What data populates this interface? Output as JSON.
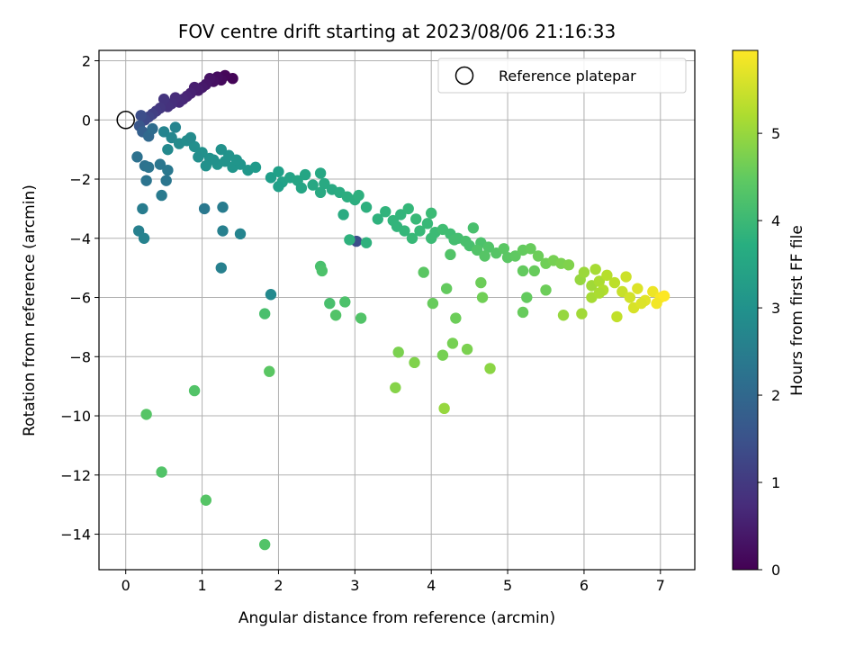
{
  "chart_data": {
    "type": "scatter",
    "title": "FOV centre drift starting at 2023/08/06 21:16:33",
    "xlabel": "Angular distance from reference (arcmin)",
    "ylabel": "Rotation from reference (arcmin)",
    "xlim": [
      -0.35,
      7.45
    ],
    "ylim": [
      -15.2,
      2.35
    ],
    "xticks": [
      0,
      1,
      2,
      3,
      4,
      5,
      6,
      7
    ],
    "yticks": [
      2,
      0,
      -2,
      -4,
      -6,
      -8,
      -10,
      -12,
      -14
    ],
    "xtick_labels": [
      "0",
      "1",
      "2",
      "3",
      "4",
      "5",
      "6",
      "7"
    ],
    "ytick_labels": [
      "2",
      "0",
      "−2",
      "−4",
      "−6",
      "−8",
      "−10",
      "−12",
      "−14"
    ],
    "grid": true,
    "legend": {
      "placement": "top-right",
      "entries": [
        "Reference platepar"
      ]
    },
    "reference_point": {
      "x": 0,
      "y": 0
    },
    "colorbar": {
      "label": "Hours from first FF file",
      "colormap": "viridis",
      "range": [
        0,
        5.95
      ],
      "ticks": [
        0,
        1,
        2,
        3,
        4,
        5
      ],
      "tick_labels": [
        "0",
        "1",
        "2",
        "3",
        "4",
        "5"
      ]
    },
    "points": [
      {
        "x": 1.4,
        "y": 1.4,
        "c": 0.05
      },
      {
        "x": 1.3,
        "y": 1.5,
        "c": 0.1
      },
      {
        "x": 1.25,
        "y": 1.35,
        "c": 0.15
      },
      {
        "x": 1.2,
        "y": 1.45,
        "c": 0.2
      },
      {
        "x": 1.15,
        "y": 1.3,
        "c": 0.25
      },
      {
        "x": 1.1,
        "y": 1.4,
        "c": 0.3
      },
      {
        "x": 1.05,
        "y": 1.2,
        "c": 0.35
      },
      {
        "x": 1.0,
        "y": 1.1,
        "c": 0.4
      },
      {
        "x": 0.95,
        "y": 1.0,
        "c": 0.45
      },
      {
        "x": 0.9,
        "y": 1.1,
        "c": 0.5
      },
      {
        "x": 0.85,
        "y": 0.9,
        "c": 0.55
      },
      {
        "x": 0.8,
        "y": 0.8,
        "c": 0.6
      },
      {
        "x": 0.75,
        "y": 0.7,
        "c": 0.65
      },
      {
        "x": 0.7,
        "y": 0.6,
        "c": 0.7
      },
      {
        "x": 0.65,
        "y": 0.75,
        "c": 0.75
      },
      {
        "x": 0.6,
        "y": 0.55,
        "c": 0.8
      },
      {
        "x": 0.55,
        "y": 0.45,
        "c": 0.85
      },
      {
        "x": 0.5,
        "y": 0.7,
        "c": 0.9
      },
      {
        "x": 0.45,
        "y": 0.4,
        "c": 0.95
      },
      {
        "x": 0.4,
        "y": 0.3,
        "c": 1.0
      },
      {
        "x": 0.35,
        "y": 0.2,
        "c": 1.1
      },
      {
        "x": 0.3,
        "y": 0.1,
        "c": 1.2
      },
      {
        "x": 0.25,
        "y": 0.0,
        "c": 1.3
      },
      {
        "x": 0.2,
        "y": 0.15,
        "c": 1.4
      },
      {
        "x": 0.18,
        "y": -0.2,
        "c": 1.6
      },
      {
        "x": 0.22,
        "y": -0.4,
        "c": 1.8
      },
      {
        "x": 0.3,
        "y": -0.55,
        "c": 2.0
      },
      {
        "x": 0.35,
        "y": -0.3,
        "c": 2.1
      },
      {
        "x": 0.15,
        "y": -1.25,
        "c": 2.2
      },
      {
        "x": 0.25,
        "y": -1.55,
        "c": 2.25
      },
      {
        "x": 0.3,
        "y": -1.6,
        "c": 2.3
      },
      {
        "x": 0.45,
        "y": -1.5,
        "c": 2.35
      },
      {
        "x": 0.55,
        "y": -1.7,
        "c": 2.4
      },
      {
        "x": 0.27,
        "y": -2.05,
        "c": 2.3
      },
      {
        "x": 0.53,
        "y": -2.05,
        "c": 2.35
      },
      {
        "x": 0.47,
        "y": -2.55,
        "c": 2.45
      },
      {
        "x": 0.22,
        "y": -3.0,
        "c": 2.5
      },
      {
        "x": 0.17,
        "y": -3.75,
        "c": 2.6
      },
      {
        "x": 0.24,
        "y": -4.0,
        "c": 2.65
      },
      {
        "x": 1.03,
        "y": -3.0,
        "c": 2.4
      },
      {
        "x": 1.27,
        "y": -2.95,
        "c": 2.5
      },
      {
        "x": 1.27,
        "y": -3.75,
        "c": 2.6
      },
      {
        "x": 1.5,
        "y": -3.85,
        "c": 2.7
      },
      {
        "x": 1.25,
        "y": -5.0,
        "c": 2.6
      },
      {
        "x": 1.9,
        "y": -5.9,
        "c": 2.8
      },
      {
        "x": 3.02,
        "y": -4.1,
        "c": 1.4
      },
      {
        "x": 0.5,
        "y": -0.4,
        "c": 2.7
      },
      {
        "x": 0.6,
        "y": -0.6,
        "c": 2.75
      },
      {
        "x": 0.55,
        "y": -1.0,
        "c": 2.8
      },
      {
        "x": 0.7,
        "y": -0.8,
        "c": 2.85
      },
      {
        "x": 0.8,
        "y": -0.7,
        "c": 2.9
      },
      {
        "x": 0.9,
        "y": -0.9,
        "c": 2.95
      },
      {
        "x": 1.0,
        "y": -1.1,
        "c": 3.0
      },
      {
        "x": 1.1,
        "y": -1.3,
        "c": 3.0
      },
      {
        "x": 1.2,
        "y": -1.5,
        "c": 3.05
      },
      {
        "x": 1.3,
        "y": -1.4,
        "c": 3.05
      },
      {
        "x": 1.4,
        "y": -1.6,
        "c": 3.1
      },
      {
        "x": 1.5,
        "y": -1.5,
        "c": 3.1
      },
      {
        "x": 1.6,
        "y": -1.7,
        "c": 3.15
      },
      {
        "x": 1.7,
        "y": -1.6,
        "c": 3.2
      },
      {
        "x": 0.95,
        "y": -1.25,
        "c": 2.95
      },
      {
        "x": 1.15,
        "y": -1.35,
        "c": 3.0
      },
      {
        "x": 1.35,
        "y": -1.2,
        "c": 3.05
      },
      {
        "x": 1.05,
        "y": -1.55,
        "c": 3.0
      },
      {
        "x": 0.65,
        "y": -0.25,
        "c": 2.7
      },
      {
        "x": 0.85,
        "y": -0.6,
        "c": 2.85
      },
      {
        "x": 1.25,
        "y": -1.0,
        "c": 3.0
      },
      {
        "x": 1.45,
        "y": -1.35,
        "c": 3.1
      },
      {
        "x": 1.9,
        "y": -1.95,
        "c": 3.3
      },
      {
        "x": 2.0,
        "y": -1.75,
        "c": 3.35
      },
      {
        "x": 2.05,
        "y": -2.1,
        "c": 3.4
      },
      {
        "x": 2.15,
        "y": -1.95,
        "c": 3.45
      },
      {
        "x": 2.25,
        "y": -2.05,
        "c": 3.5
      },
      {
        "x": 2.35,
        "y": -1.85,
        "c": 3.5
      },
      {
        "x": 2.45,
        "y": -2.2,
        "c": 3.55
      },
      {
        "x": 2.55,
        "y": -1.8,
        "c": 3.55
      },
      {
        "x": 2.6,
        "y": -2.15,
        "c": 3.6
      },
      {
        "x": 2.7,
        "y": -2.35,
        "c": 3.6
      },
      {
        "x": 2.8,
        "y": -2.45,
        "c": 3.65
      },
      {
        "x": 2.9,
        "y": -2.6,
        "c": 3.7
      },
      {
        "x": 3.0,
        "y": -2.7,
        "c": 3.7
      },
      {
        "x": 3.05,
        "y": -2.55,
        "c": 3.75
      },
      {
        "x": 2.0,
        "y": -2.25,
        "c": 3.35
      },
      {
        "x": 2.3,
        "y": -2.3,
        "c": 3.5
      },
      {
        "x": 2.55,
        "y": -2.45,
        "c": 3.6
      },
      {
        "x": 2.85,
        "y": -3.2,
        "c": 3.65
      },
      {
        "x": 3.15,
        "y": -2.95,
        "c": 3.75
      },
      {
        "x": 3.3,
        "y": -3.35,
        "c": 3.8
      },
      {
        "x": 3.4,
        "y": -3.1,
        "c": 3.85
      },
      {
        "x": 3.5,
        "y": -3.4,
        "c": 3.9
      },
      {
        "x": 3.6,
        "y": -3.2,
        "c": 3.9
      },
      {
        "x": 3.7,
        "y": -3.0,
        "c": 3.95
      },
      {
        "x": 3.8,
        "y": -3.35,
        "c": 4.0
      },
      {
        "x": 3.95,
        "y": -3.5,
        "c": 4.0
      },
      {
        "x": 4.0,
        "y": -3.15,
        "c": 4.05
      },
      {
        "x": 4.05,
        "y": -3.8,
        "c": 4.05
      },
      {
        "x": 4.15,
        "y": -3.7,
        "c": 4.1
      },
      {
        "x": 4.25,
        "y": -3.85,
        "c": 4.1
      },
      {
        "x": 4.35,
        "y": -4.0,
        "c": 4.15
      },
      {
        "x": 4.45,
        "y": -4.1,
        "c": 4.2
      },
      {
        "x": 4.55,
        "y": -3.65,
        "c": 4.2
      },
      {
        "x": 4.65,
        "y": -4.15,
        "c": 4.25
      },
      {
        "x": 4.75,
        "y": -4.3,
        "c": 4.3
      },
      {
        "x": 4.85,
        "y": -4.5,
        "c": 4.35
      },
      {
        "x": 3.85,
        "y": -3.75,
        "c": 4.0
      },
      {
        "x": 4.0,
        "y": -4.0,
        "c": 4.05
      },
      {
        "x": 4.3,
        "y": -4.05,
        "c": 4.15
      },
      {
        "x": 4.5,
        "y": -4.25,
        "c": 4.2
      },
      {
        "x": 3.55,
        "y": -3.6,
        "c": 3.9
      },
      {
        "x": 3.65,
        "y": -3.75,
        "c": 3.95
      },
      {
        "x": 3.75,
        "y": -4.0,
        "c": 4.0
      },
      {
        "x": 2.93,
        "y": -4.05,
        "c": 3.8
      },
      {
        "x": 3.15,
        "y": -4.15,
        "c": 3.8
      },
      {
        "x": 4.25,
        "y": -4.55,
        "c": 4.3
      },
      {
        "x": 4.6,
        "y": -4.4,
        "c": 4.3
      },
      {
        "x": 4.7,
        "y": -4.6,
        "c": 4.35
      },
      {
        "x": 4.95,
        "y": -4.35,
        "c": 4.4
      },
      {
        "x": 5.0,
        "y": -4.65,
        "c": 4.4
      },
      {
        "x": 5.1,
        "y": -4.6,
        "c": 4.45
      },
      {
        "x": 5.2,
        "y": -4.4,
        "c": 4.5
      },
      {
        "x": 5.3,
        "y": -4.35,
        "c": 4.55
      },
      {
        "x": 5.4,
        "y": -4.6,
        "c": 4.6
      },
      {
        "x": 5.5,
        "y": -4.85,
        "c": 4.65
      },
      {
        "x": 5.6,
        "y": -4.75,
        "c": 4.7
      },
      {
        "x": 5.7,
        "y": -4.85,
        "c": 4.75
      },
      {
        "x": 5.8,
        "y": -4.9,
        "c": 4.8
      },
      {
        "x": 5.2,
        "y": -5.1,
        "c": 4.5
      },
      {
        "x": 5.35,
        "y": -5.1,
        "c": 4.55
      },
      {
        "x": 5.5,
        "y": -5.75,
        "c": 4.6
      },
      {
        "x": 5.25,
        "y": -6.0,
        "c": 4.5
      },
      {
        "x": 5.2,
        "y": -6.5,
        "c": 4.55
      },
      {
        "x": 5.95,
        "y": -5.4,
        "c": 5.0
      },
      {
        "x": 6.0,
        "y": -5.15,
        "c": 5.05
      },
      {
        "x": 6.1,
        "y": -5.6,
        "c": 5.1
      },
      {
        "x": 6.15,
        "y": -5.05,
        "c": 5.15
      },
      {
        "x": 6.2,
        "y": -5.45,
        "c": 5.2
      },
      {
        "x": 6.25,
        "y": -5.75,
        "c": 5.25
      },
      {
        "x": 6.3,
        "y": -5.25,
        "c": 5.3
      },
      {
        "x": 6.4,
        "y": -5.5,
        "c": 5.35
      },
      {
        "x": 6.5,
        "y": -5.8,
        "c": 5.45
      },
      {
        "x": 6.55,
        "y": -5.3,
        "c": 5.5
      },
      {
        "x": 6.6,
        "y": -6.0,
        "c": 5.55
      },
      {
        "x": 6.7,
        "y": -5.7,
        "c": 5.65
      },
      {
        "x": 6.8,
        "y": -6.1,
        "c": 5.7
      },
      {
        "x": 6.9,
        "y": -5.8,
        "c": 5.8
      },
      {
        "x": 7.0,
        "y": -6.0,
        "c": 5.9
      },
      {
        "x": 7.05,
        "y": -5.95,
        "c": 5.95
      },
      {
        "x": 6.1,
        "y": -6.0,
        "c": 5.15
      },
      {
        "x": 6.2,
        "y": -5.85,
        "c": 5.2
      },
      {
        "x": 6.65,
        "y": -6.35,
        "c": 5.6
      },
      {
        "x": 6.75,
        "y": -6.2,
        "c": 5.65
      },
      {
        "x": 6.95,
        "y": -6.2,
        "c": 5.85
      },
      {
        "x": 6.43,
        "y": -6.65,
        "c": 5.4
      },
      {
        "x": 5.73,
        "y": -6.6,
        "c": 5.0
      },
      {
        "x": 5.97,
        "y": -6.55,
        "c": 5.1
      },
      {
        "x": 2.55,
        "y": -4.95,
        "c": 4.2
      },
      {
        "x": 2.57,
        "y": -5.1,
        "c": 4.25
      },
      {
        "x": 2.67,
        "y": -6.2,
        "c": 4.2
      },
      {
        "x": 2.87,
        "y": -6.15,
        "c": 4.25
      },
      {
        "x": 2.75,
        "y": -6.6,
        "c": 4.3
      },
      {
        "x": 3.08,
        "y": -6.7,
        "c": 4.3
      },
      {
        "x": 1.82,
        "y": -6.55,
        "c": 4.2
      },
      {
        "x": 3.9,
        "y": -5.15,
        "c": 4.4
      },
      {
        "x": 4.2,
        "y": -5.7,
        "c": 4.5
      },
      {
        "x": 4.02,
        "y": -6.2,
        "c": 4.55
      },
      {
        "x": 4.32,
        "y": -6.7,
        "c": 4.6
      },
      {
        "x": 4.65,
        "y": -5.5,
        "c": 4.6
      },
      {
        "x": 4.67,
        "y": -6.0,
        "c": 4.65
      },
      {
        "x": 4.28,
        "y": -7.55,
        "c": 4.7
      },
      {
        "x": 4.47,
        "y": -7.75,
        "c": 4.75
      },
      {
        "x": 4.15,
        "y": -7.95,
        "c": 4.7
      },
      {
        "x": 3.57,
        "y": -7.85,
        "c": 4.75
      },
      {
        "x": 3.78,
        "y": -8.2,
        "c": 4.8
      },
      {
        "x": 4.77,
        "y": -8.4,
        "c": 4.9
      },
      {
        "x": 3.53,
        "y": -9.05,
        "c": 4.85
      },
      {
        "x": 4.17,
        "y": -9.75,
        "c": 5.0
      },
      {
        "x": 1.88,
        "y": -8.5,
        "c": 4.4
      },
      {
        "x": 0.9,
        "y": -9.15,
        "c": 4.3
      },
      {
        "x": 0.27,
        "y": -9.95,
        "c": 4.35
      },
      {
        "x": 0.47,
        "y": -11.9,
        "c": 4.3
      },
      {
        "x": 1.05,
        "y": -12.85,
        "c": 4.35
      },
      {
        "x": 1.82,
        "y": -14.35,
        "c": 4.3
      }
    ]
  }
}
